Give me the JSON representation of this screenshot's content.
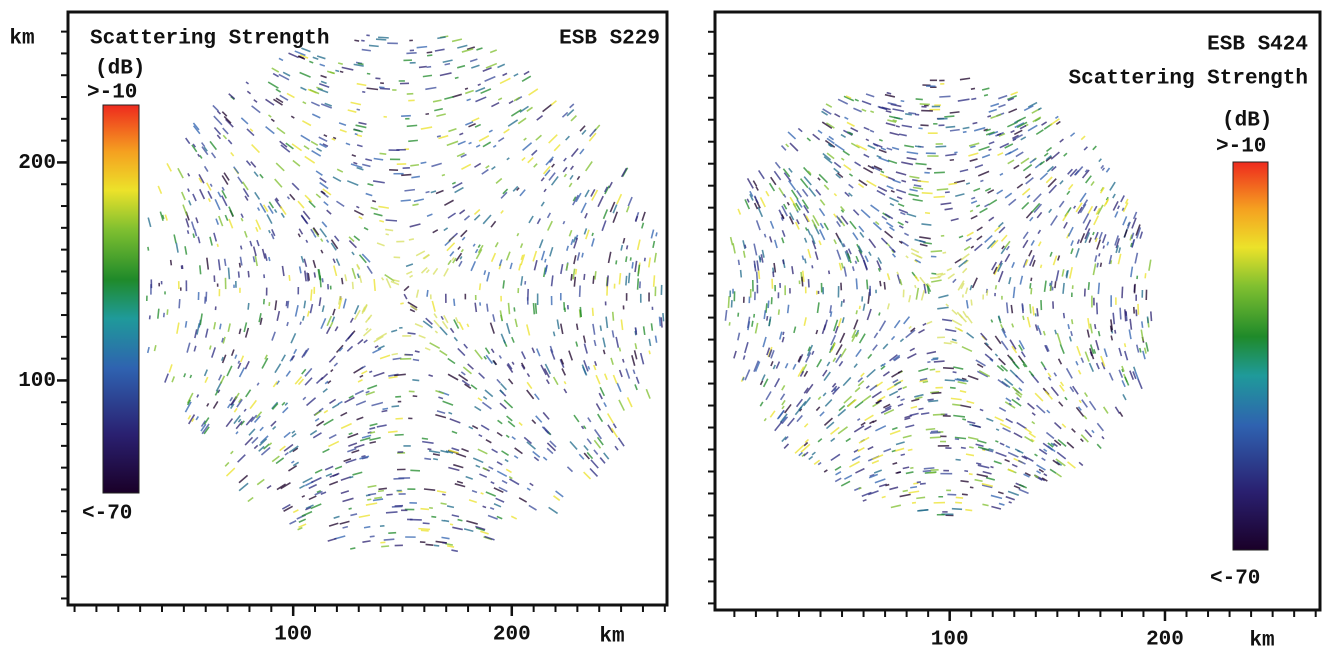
{
  "chart_data": [
    {
      "type": "map",
      "title": "Scattering Strength",
      "label": "ESB S229",
      "xlabel": "km",
      "ylabel": "km",
      "xlim": [
        -3,
        271
      ],
      "ylim": [
        -3,
        269
      ],
      "xticks": [
        100,
        200
      ],
      "yticks": [
        100,
        200
      ],
      "colorbar": {
        "label": "(dB)",
        "clim": [
          -70,
          -10
        ],
        "ticks": [
          {
            "value": -10,
            "label": ">-10"
          },
          {
            "value": -70,
            "label": "<-70"
          }
        ]
      }
    },
    {
      "type": "map",
      "title": "Scattering Strength",
      "label": "ESB S424",
      "xlabel": "km",
      "xlim": [
        -9,
        272
      ],
      "ylim": [
        -3,
        269
      ],
      "xticks": [
        100,
        200
      ],
      "colorbar": {
        "label": "(dB)",
        "clim": [
          -70,
          -10
        ],
        "ticks": [
          {
            "value": -10,
            "label": ">-10"
          },
          {
            "value": -70,
            "label": "<-70"
          }
        ]
      }
    }
  ]
}
